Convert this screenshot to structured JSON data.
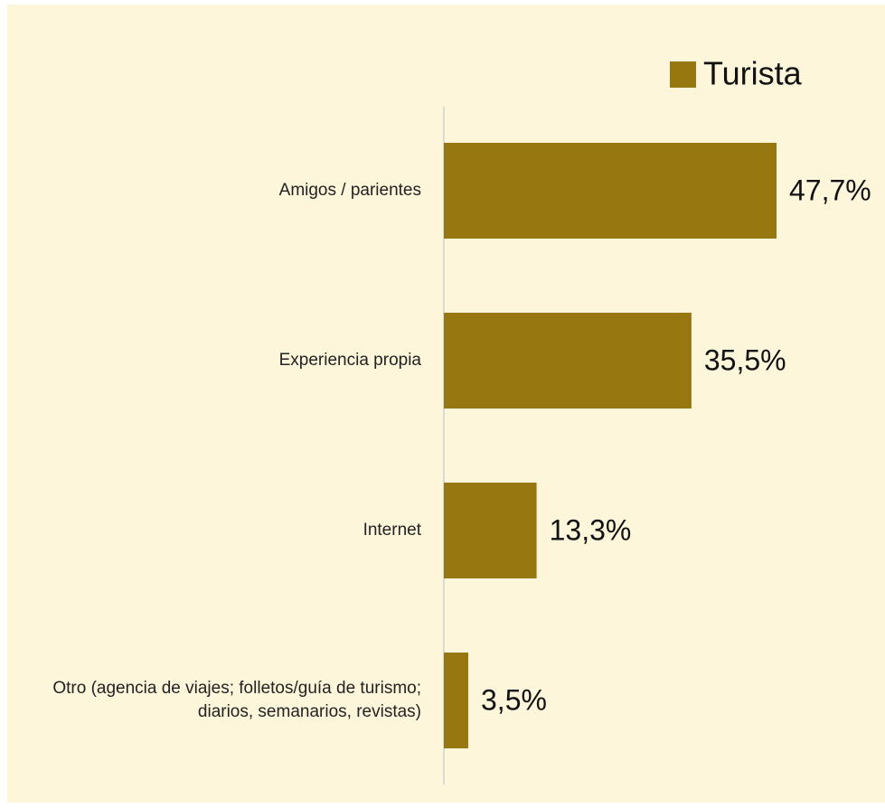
{
  "chart_data": {
    "type": "barh",
    "categories": [
      "Amigos / parientes",
      "Experiencia propia",
      "Internet",
      "Otro (agencia de viajes; folletos/guía de turismo; diarios, semanarios, revistas)"
    ],
    "series": [
      {
        "name": "Turista",
        "color": "#977710",
        "values": [
          47.7,
          35.5,
          13.3,
          3.5
        ],
        "value_labels": [
          "47,7%",
          "35,5%",
          "13,3%",
          "3,5%"
        ]
      }
    ],
    "legend": "top-right"
  }
}
